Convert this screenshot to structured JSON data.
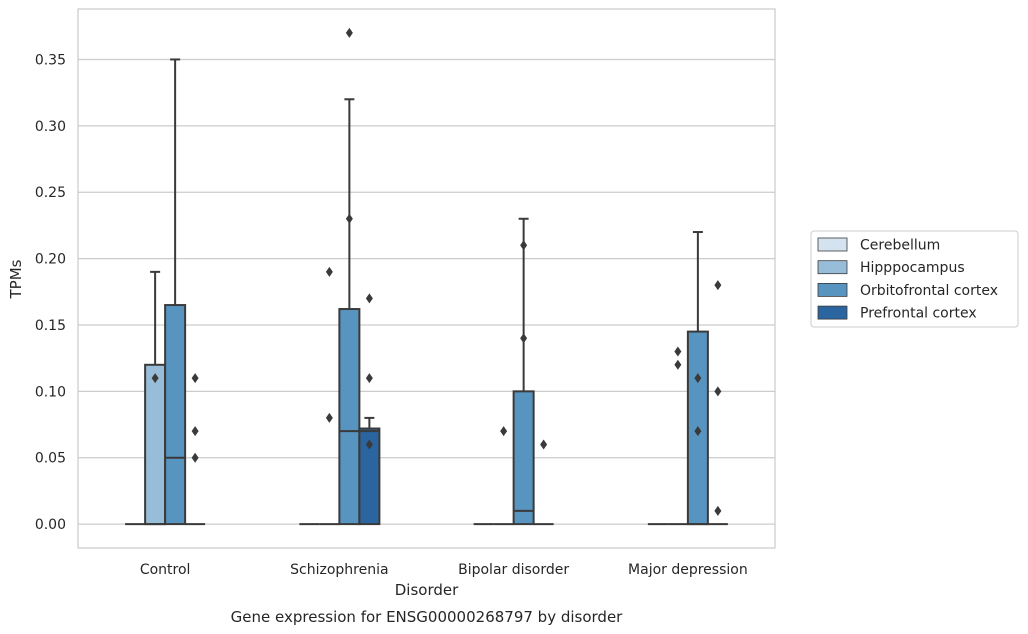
{
  "chart_data": {
    "type": "box",
    "xlabel": "Disorder",
    "ylabel": "TPMs",
    "caption": "Gene expression for ENSG00000268797 by disorder",
    "ylim": [
      -0.018,
      0.388
    ],
    "yticks": [
      "0.00",
      "0.05",
      "0.10",
      "0.15",
      "0.20",
      "0.25",
      "0.30",
      "0.35"
    ],
    "categories": [
      "Control",
      "Schizophrenia",
      "Bipolar disorder",
      "Major depression"
    ],
    "grid": "horizontal",
    "legend_position": "right",
    "series": [
      {
        "name": "Cerebellum",
        "color": "#d5e3f0",
        "boxes": [
          {
            "category": "Control",
            "q1": 0,
            "median": 0,
            "q3": 0,
            "whisker_low": 0,
            "whisker_high": 0,
            "outliers": []
          },
          {
            "category": "Schizophrenia",
            "q1": 0,
            "median": 0,
            "q3": 0,
            "whisker_low": 0,
            "whisker_high": 0,
            "outliers": []
          },
          {
            "category": "Bipolar disorder",
            "q1": 0,
            "median": 0,
            "q3": 0,
            "whisker_low": 0,
            "whisker_high": 0,
            "outliers": []
          },
          {
            "category": "Major depression",
            "q1": 0,
            "median": 0,
            "q3": 0,
            "whisker_low": 0,
            "whisker_high": 0,
            "outliers": []
          }
        ]
      },
      {
        "name": "Hipppocampus",
        "color": "#98bdd8",
        "boxes": [
          {
            "category": "Control",
            "q1": 0,
            "median": 0,
            "q3": 0.12,
            "whisker_low": 0,
            "whisker_high": 0.19,
            "outliers": [
              0.11
            ]
          },
          {
            "category": "Schizophrenia",
            "q1": 0,
            "median": 0,
            "q3": 0,
            "whisker_low": 0,
            "whisker_high": 0,
            "outliers": [
              0.19,
              0.08
            ]
          },
          {
            "category": "Bipolar disorder",
            "q1": 0,
            "median": 0,
            "q3": 0,
            "whisker_low": 0,
            "whisker_high": 0,
            "outliers": [
              0.07
            ]
          },
          {
            "category": "Major depression",
            "q1": 0,
            "median": 0,
            "q3": 0,
            "whisker_low": 0,
            "whisker_high": 0,
            "outliers": [
              0.13,
              0.12
            ]
          }
        ]
      },
      {
        "name": "Orbitofrontal cortex",
        "color": "#5894c0",
        "boxes": [
          {
            "category": "Control",
            "q1": 0,
            "median": 0.05,
            "q3": 0.165,
            "whisker_low": 0,
            "whisker_high": 0.35,
            "outliers": []
          },
          {
            "category": "Schizophrenia",
            "q1": 0,
            "median": 0.07,
            "q3": 0.162,
            "whisker_low": 0,
            "whisker_high": 0.32,
            "outliers": [
              0.37,
              0.23
            ]
          },
          {
            "category": "Bipolar disorder",
            "q1": 0,
            "median": 0.01,
            "q3": 0.1,
            "whisker_low": 0,
            "whisker_high": 0.23,
            "outliers": [
              0.21,
              0.14
            ]
          },
          {
            "category": "Major depression",
            "q1": 0,
            "median": 0,
            "q3": 0.145,
            "whisker_low": 0,
            "whisker_high": 0.22,
            "outliers": [
              0.11,
              0.07
            ]
          }
        ]
      },
      {
        "name": "Prefrontal cortex",
        "color": "#2a65a0",
        "boxes": [
          {
            "category": "Control",
            "q1": 0,
            "median": 0,
            "q3": 0,
            "whisker_low": 0,
            "whisker_high": 0,
            "outliers": [
              0.11,
              0.07,
              0.05
            ]
          },
          {
            "category": "Schizophrenia",
            "q1": 0,
            "median": 0.07,
            "q3": 0.072,
            "whisker_low": 0,
            "whisker_high": 0.08,
            "outliers": [
              0.17,
              0.11,
              0.06
            ]
          },
          {
            "category": "Bipolar disorder",
            "q1": 0,
            "median": 0,
            "q3": 0,
            "whisker_low": 0,
            "whisker_high": 0,
            "outliers": [
              0.06
            ]
          },
          {
            "category": "Major depression",
            "q1": 0,
            "median": 0,
            "q3": 0,
            "whisker_low": 0,
            "whisker_high": 0,
            "outliers": [
              0.18,
              0.1,
              0.01
            ]
          }
        ]
      }
    ]
  }
}
